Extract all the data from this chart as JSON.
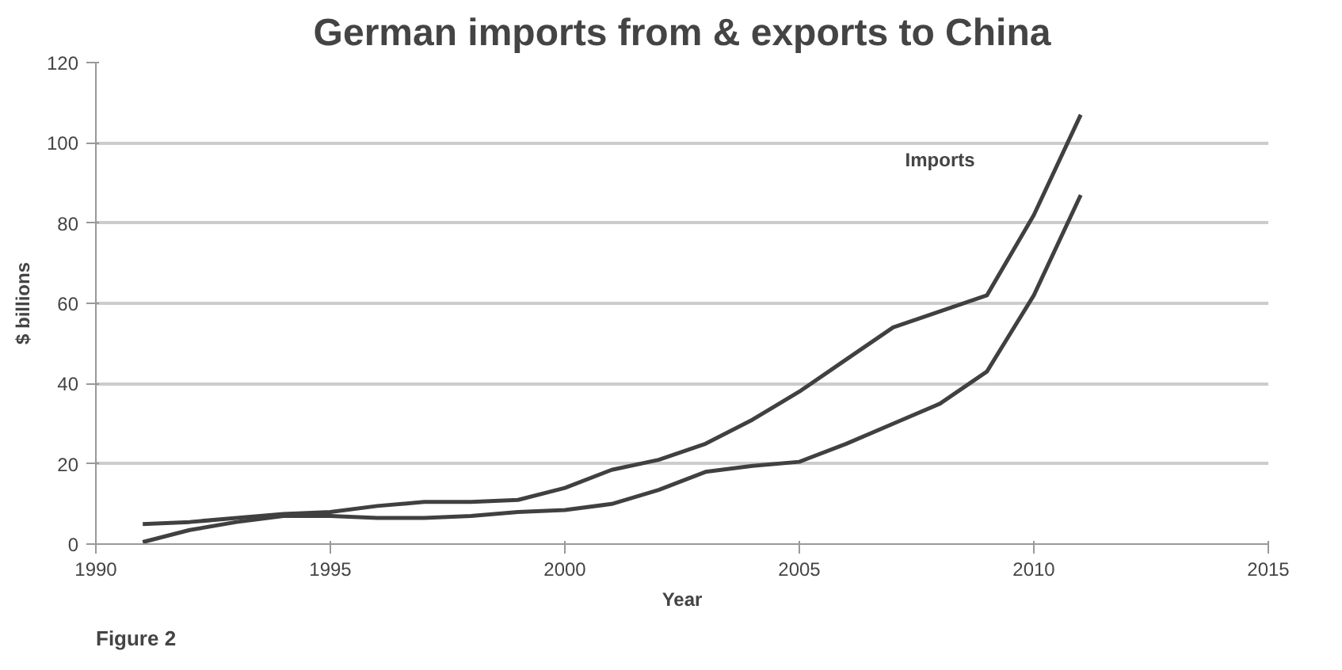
{
  "chart_data": {
    "type": "line",
    "title": "German imports from & exports to China",
    "xlabel": "Year",
    "ylabel": "$ billions",
    "annotations": [
      "Figure 2"
    ],
    "x": [
      1991,
      1992,
      1993,
      1994,
      1995,
      1996,
      1997,
      1998,
      1999,
      2000,
      2001,
      2002,
      2003,
      2004,
      2005,
      2006,
      2007,
      2008,
      2009,
      2010,
      2011
    ],
    "series": [
      {
        "name": "Imports",
        "color": "#404040",
        "values": [
          5,
          5.5,
          6.5,
          7.5,
          8,
          9.5,
          10.5,
          10.5,
          11,
          14,
          18.5,
          21,
          25,
          31,
          38,
          46,
          54,
          58,
          62,
          82,
          107
        ]
      },
      {
        "color": "#404040",
        "values": [
          0.5,
          3.5,
          5.5,
          7,
          7,
          6.5,
          6.5,
          7,
          8,
          8.5,
          10,
          13.5,
          18,
          19.5,
          20.5,
          25,
          30,
          35,
          43,
          62,
          87
        ]
      }
    ],
    "xlim": [
      1990,
      2015
    ],
    "xticks": [
      1990,
      1995,
      2000,
      2005,
      2010,
      2015
    ],
    "ylim": [
      0,
      120
    ],
    "yticks": [
      0,
      20,
      40,
      60,
      80,
      100,
      120
    ],
    "grid": "y",
    "marker": "none",
    "line_style": "solid"
  }
}
